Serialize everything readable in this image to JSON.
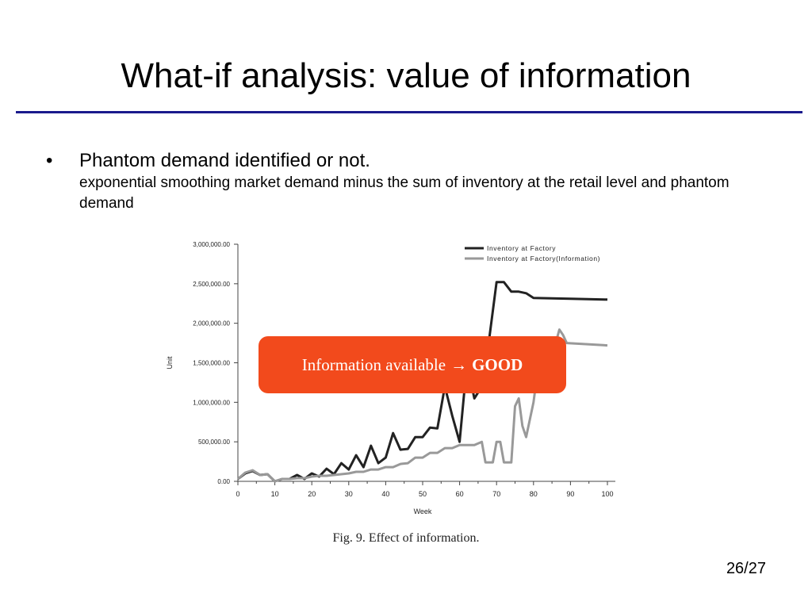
{
  "slide": {
    "title": "What-if analysis: value of information",
    "bullet_symbol": "•",
    "bullet_main": "Phantom demand identified or not.",
    "bullet_sub": "exponential smoothing market demand minus the sum of inventory at the retail level and phantom demand",
    "page_number": "26/27",
    "figure_caption": "Fig. 9.  Effect of information."
  },
  "callout": {
    "text": "Information available",
    "arrow": "→",
    "emphasis": "GOOD",
    "color": "#f24a1c"
  },
  "chart_data": {
    "type": "line",
    "xlabel": "Week",
    "ylabel": "Unit",
    "xlim": [
      0,
      100
    ],
    "ylim": [
      0,
      3000000
    ],
    "x_ticks": [
      0,
      10,
      20,
      30,
      40,
      50,
      60,
      70,
      80,
      90,
      100
    ],
    "x_tick_labels": [
      "0",
      "10",
      "20",
      "30",
      "40",
      "50",
      "60",
      "70",
      "80",
      "90",
      "100"
    ],
    "y_ticks": [
      0,
      500000,
      1000000,
      1500000,
      2000000,
      2500000,
      3000000
    ],
    "y_tick_labels": [
      "0.00",
      "500,000.00",
      "1,000,000.00",
      "1,500,000.00",
      "2,000,000.00",
      "2,500,000.00",
      "3,000,000.00"
    ],
    "grid": false,
    "legend_position": "top-right",
    "series": [
      {
        "name": "Inventory at Factory",
        "color": "#222222",
        "points": [
          [
            0,
            30000
          ],
          [
            2,
            100000
          ],
          [
            4,
            130000
          ],
          [
            6,
            80000
          ],
          [
            8,
            90000
          ],
          [
            10,
            0
          ],
          [
            12,
            30000
          ],
          [
            14,
            30000
          ],
          [
            16,
            80000
          ],
          [
            18,
            30000
          ],
          [
            20,
            100000
          ],
          [
            22,
            60000
          ],
          [
            24,
            160000
          ],
          [
            26,
            90000
          ],
          [
            28,
            230000
          ],
          [
            30,
            150000
          ],
          [
            32,
            330000
          ],
          [
            34,
            180000
          ],
          [
            36,
            450000
          ],
          [
            38,
            230000
          ],
          [
            40,
            300000
          ],
          [
            42,
            610000
          ],
          [
            44,
            400000
          ],
          [
            46,
            410000
          ],
          [
            48,
            560000
          ],
          [
            50,
            560000
          ],
          [
            52,
            680000
          ],
          [
            54,
            670000
          ],
          [
            56,
            1200000
          ],
          [
            58,
            830000
          ],
          [
            60,
            500000
          ],
          [
            62,
            1500000
          ],
          [
            64,
            1050000
          ],
          [
            66,
            1200000
          ],
          [
            68,
            1800000
          ],
          [
            70,
            2520000
          ],
          [
            72,
            2520000
          ],
          [
            74,
            2400000
          ],
          [
            76,
            2400000
          ],
          [
            78,
            2380000
          ],
          [
            80,
            2320000
          ],
          [
            90,
            2310000
          ],
          [
            100,
            2300000
          ]
        ]
      },
      {
        "name": "Inventory at Factory(Information)",
        "color": "#999999",
        "points": [
          [
            0,
            30000
          ],
          [
            2,
            110000
          ],
          [
            4,
            140000
          ],
          [
            6,
            80000
          ],
          [
            8,
            90000
          ],
          [
            10,
            0
          ],
          [
            12,
            30000
          ],
          [
            14,
            30000
          ],
          [
            16,
            40000
          ],
          [
            18,
            40000
          ],
          [
            20,
            60000
          ],
          [
            22,
            70000
          ],
          [
            24,
            70000
          ],
          [
            26,
            80000
          ],
          [
            28,
            90000
          ],
          [
            30,
            100000
          ],
          [
            32,
            120000
          ],
          [
            34,
            120000
          ],
          [
            36,
            150000
          ],
          [
            38,
            150000
          ],
          [
            40,
            180000
          ],
          [
            42,
            180000
          ],
          [
            44,
            220000
          ],
          [
            46,
            230000
          ],
          [
            48,
            300000
          ],
          [
            50,
            300000
          ],
          [
            52,
            360000
          ],
          [
            54,
            360000
          ],
          [
            56,
            420000
          ],
          [
            58,
            420000
          ],
          [
            60,
            460000
          ],
          [
            62,
            460000
          ],
          [
            64,
            460000
          ],
          [
            66,
            500000
          ],
          [
            67,
            240000
          ],
          [
            69,
            240000
          ],
          [
            70,
            500000
          ],
          [
            71,
            500000
          ],
          [
            72,
            240000
          ],
          [
            74,
            240000
          ],
          [
            75,
            950000
          ],
          [
            76,
            1050000
          ],
          [
            77,
            700000
          ],
          [
            78,
            560000
          ],
          [
            80,
            1000000
          ],
          [
            82,
            1700000
          ],
          [
            84,
            1700000
          ],
          [
            86,
            1750000
          ],
          [
            87,
            1920000
          ],
          [
            88,
            1850000
          ],
          [
            89,
            1750000
          ],
          [
            100,
            1720000
          ]
        ]
      }
    ]
  }
}
